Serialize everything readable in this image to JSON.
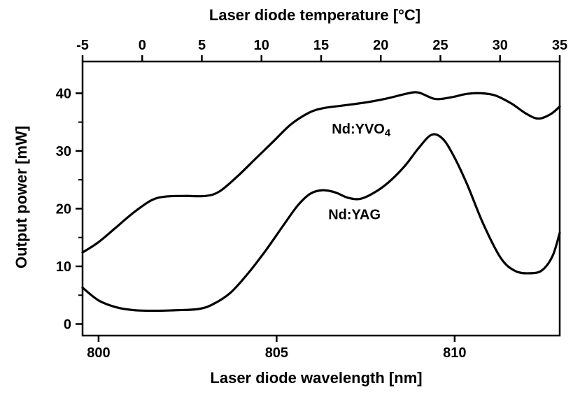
{
  "figure": {
    "top_axis_title": "Laser diode temperature [°C]",
    "left_axis_title": "Output power [mW]",
    "bottom_axis_title": "Laser diode wavelength [nm]"
  },
  "chart_data": {
    "type": "line",
    "title": "",
    "xlabel": "Laser diode wavelength [nm]",
    "ylabel": "Output power [mW]",
    "x2label": "Laser diode temperature [°C]",
    "grid": false,
    "legend_position": "inline-labels",
    "line_color": "#000000",
    "xlim": [
      799.55,
      812.95
    ],
    "ylim": [
      -2,
      45.5
    ],
    "x_ticks": [
      800,
      805,
      810
    ],
    "y_ticks": [
      0,
      10,
      20,
      30,
      40
    ],
    "y_minor_ticks": [
      5,
      15,
      25,
      35
    ],
    "top_axis": {
      "lim": [
        -5,
        35
      ],
      "ticks": [
        -5,
        0,
        5,
        10,
        15,
        20,
        25,
        30,
        35
      ]
    },
    "series": [
      {
        "name": "Nd:YVO4",
        "label": {
          "text": "Nd:YVO",
          "sub": "4",
          "x": 806.55,
          "y": 33.0
        },
        "points": [
          [
            799.55,
            12.4
          ],
          [
            800.0,
            14.2
          ],
          [
            800.5,
            16.8
          ],
          [
            801.0,
            19.4
          ],
          [
            801.5,
            21.5
          ],
          [
            801.9,
            22.1
          ],
          [
            802.4,
            22.2
          ],
          [
            803.0,
            22.2
          ],
          [
            803.4,
            23.0
          ],
          [
            803.9,
            25.6
          ],
          [
            804.4,
            28.6
          ],
          [
            804.9,
            31.6
          ],
          [
            805.4,
            34.6
          ],
          [
            805.9,
            36.6
          ],
          [
            806.3,
            37.4
          ],
          [
            806.9,
            37.9
          ],
          [
            807.5,
            38.4
          ],
          [
            808.1,
            39.1
          ],
          [
            808.7,
            40.0
          ],
          [
            809.0,
            40.1
          ],
          [
            809.45,
            39.0
          ],
          [
            809.9,
            39.3
          ],
          [
            810.35,
            39.9
          ],
          [
            810.75,
            40.0
          ],
          [
            811.15,
            39.6
          ],
          [
            811.6,
            38.2
          ],
          [
            812.0,
            36.5
          ],
          [
            812.35,
            35.6
          ],
          [
            812.7,
            36.4
          ],
          [
            812.95,
            37.7
          ]
        ]
      },
      {
        "name": "Nd:YAG",
        "label": {
          "text": "Nd:YAG",
          "sub": "",
          "x": 806.45,
          "y": 18.2
        },
        "points": [
          [
            799.55,
            6.3
          ],
          [
            800.0,
            4.1
          ],
          [
            800.5,
            2.9
          ],
          [
            801.0,
            2.4
          ],
          [
            801.6,
            2.3
          ],
          [
            802.2,
            2.4
          ],
          [
            802.8,
            2.6
          ],
          [
            803.2,
            3.4
          ],
          [
            803.7,
            5.4
          ],
          [
            804.2,
            8.8
          ],
          [
            804.7,
            12.8
          ],
          [
            805.2,
            17.2
          ],
          [
            805.6,
            20.6
          ],
          [
            805.95,
            22.6
          ],
          [
            806.3,
            23.2
          ],
          [
            806.65,
            22.8
          ],
          [
            807.0,
            21.9
          ],
          [
            807.35,
            21.7
          ],
          [
            807.75,
            22.8
          ],
          [
            808.15,
            24.6
          ],
          [
            808.6,
            27.4
          ],
          [
            809.0,
            30.6
          ],
          [
            809.35,
            32.8
          ],
          [
            809.65,
            32.2
          ],
          [
            809.95,
            29.4
          ],
          [
            810.35,
            24.2
          ],
          [
            810.8,
            17.4
          ],
          [
            811.3,
            11.4
          ],
          [
            811.7,
            9.2
          ],
          [
            812.1,
            8.8
          ],
          [
            812.45,
            9.3
          ],
          [
            812.75,
            11.8
          ],
          [
            812.95,
            15.8
          ]
        ]
      }
    ]
  }
}
